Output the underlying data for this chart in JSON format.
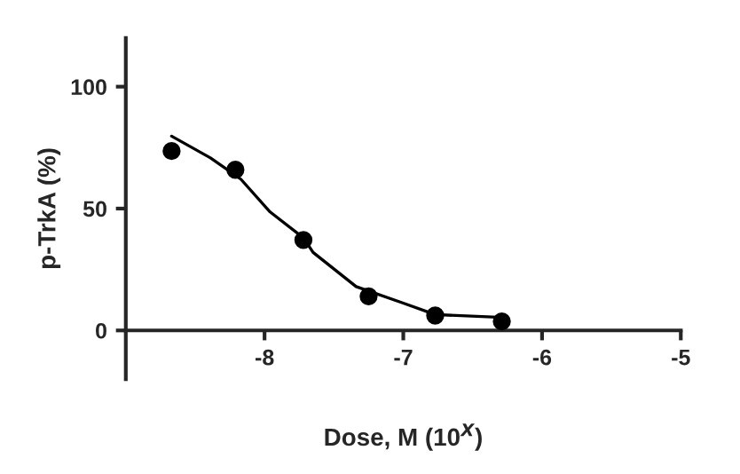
{
  "chart_data": {
    "type": "scatter",
    "xlabel": "Dose, M (10$^{X}$)",
    "ylabel": "p-TrkA (%)",
    "xlim": [
      -9,
      -5
    ],
    "ylim": [
      -20,
      120
    ],
    "xticks": [
      -8,
      -7,
      -6,
      -5
    ],
    "yticks": [
      0,
      50,
      100
    ],
    "grid": false,
    "legend": false,
    "series": [
      {
        "marker": "circle",
        "color": "#000000",
        "x": [
          -8.67,
          -8.21,
          -7.72,
          -7.25,
          -6.77,
          -6.29
        ],
        "values": [
          73.6,
          65.9,
          37.1,
          14,
          6.1,
          3.7
        ]
      },
      {
        "type": "line",
        "color": "#000000",
        "marker": "none",
        "line_style": "solid",
        "x": [
          -8.67,
          -8.39,
          -8.17,
          -7.96,
          -7.72,
          -7.65,
          -7.34,
          -7.0,
          -6.77,
          -6.32,
          -6.29
        ],
        "values": [
          79.7,
          70.8,
          62,
          48.6,
          38,
          32,
          18,
          11.2,
          6.5,
          5.4,
          3.7
        ]
      }
    ]
  }
}
